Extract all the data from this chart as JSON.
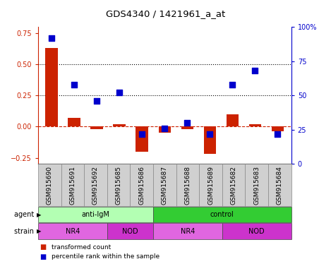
{
  "title": "GDS4340 / 1421961_a_at",
  "samples": [
    "GSM915690",
    "GSM915691",
    "GSM915692",
    "GSM915685",
    "GSM915686",
    "GSM915687",
    "GSM915688",
    "GSM915689",
    "GSM915682",
    "GSM915683",
    "GSM915684"
  ],
  "bar_values": [
    0.63,
    0.07,
    -0.02,
    0.02,
    -0.2,
    -0.05,
    -0.02,
    -0.22,
    0.1,
    0.02,
    -0.04
  ],
  "dot_values": [
    92,
    58,
    46,
    52,
    22,
    26,
    30,
    22,
    58,
    68,
    22
  ],
  "bar_color": "#cc2200",
  "dot_color": "#0000cc",
  "ylim_left": [
    -0.3,
    0.8
  ],
  "ylim_right": [
    0,
    100
  ],
  "yticks_left": [
    -0.25,
    0.0,
    0.25,
    0.5,
    0.75
  ],
  "yticks_right": [
    0,
    25,
    50,
    75,
    100
  ],
  "hlines": [
    0.5,
    0.25
  ],
  "agent_groups": [
    {
      "label": "anti-IgM",
      "start": 0,
      "end": 5,
      "color": "#b3ffb3"
    },
    {
      "label": "control",
      "start": 5,
      "end": 11,
      "color": "#33cc33"
    }
  ],
  "strain_groups": [
    {
      "label": "NR4",
      "start": 0,
      "end": 3,
      "color": "#e066e0"
    },
    {
      "label": "NOD",
      "start": 3,
      "end": 5,
      "color": "#cc33cc"
    },
    {
      "label": "NR4",
      "start": 5,
      "end": 8,
      "color": "#e066e0"
    },
    {
      "label": "NOD",
      "start": 8,
      "end": 11,
      "color": "#cc33cc"
    }
  ],
  "agent_label": "agent",
  "strain_label": "strain",
  "legend_red": "transformed count",
  "legend_blue": "percentile rank within the sample",
  "bg_color": "#ffffff",
  "bar_color_left_spine": "#cc2200",
  "dot_color_right_spine": "#0000cc",
  "bar_width": 0.55,
  "dot_size": 28,
  "sample_box_color": "#d0d0d0",
  "title_fontsize": 9.5,
  "tick_fontsize": 7,
  "label_fontsize": 6.5,
  "row_fontsize": 7,
  "legend_fontsize": 6.5
}
